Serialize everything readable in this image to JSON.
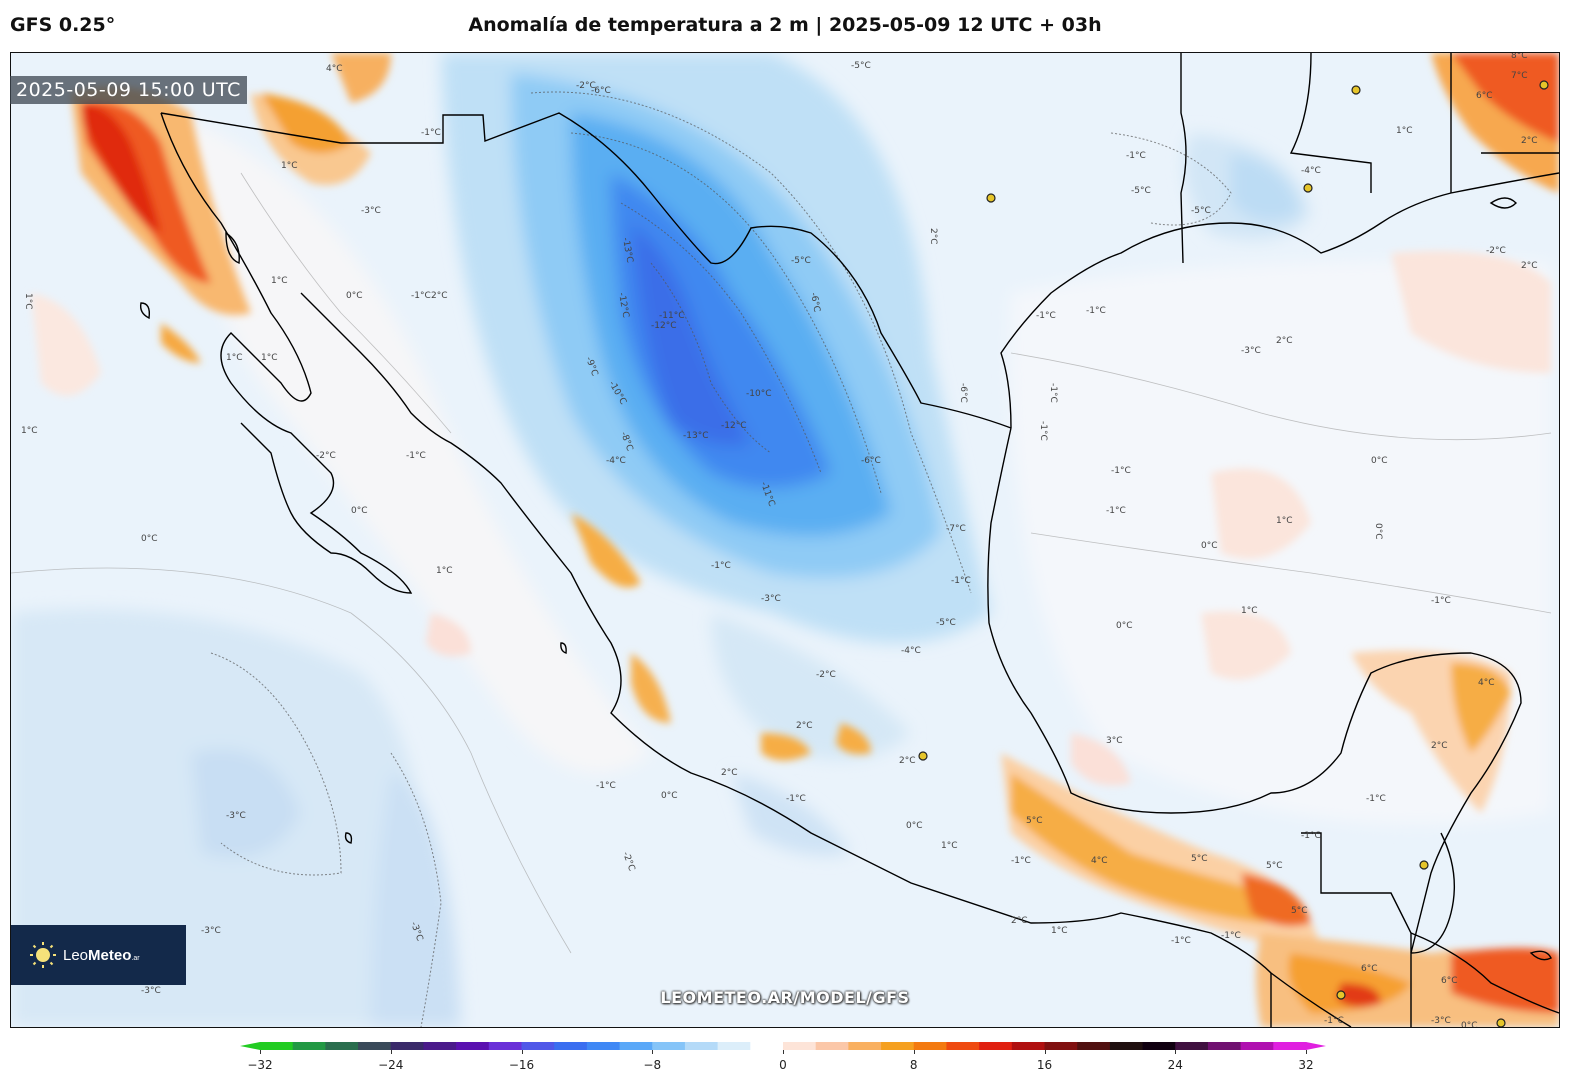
{
  "header": {
    "model": "GFS 0.25°",
    "title": "Anomalía de temperatura a 2 m | 2025-05-09 12 UTC + 03h"
  },
  "map": {
    "timestamp": "2025-05-09 15:00 UTC",
    "watermark": "LEOMETEO.AR/MODEL/GFS",
    "contour_labels": [
      "-13°C",
      "-12°C",
      "-11°C",
      "-10°C",
      "-9°C",
      "-8°C",
      "-7°C",
      "-6°C",
      "-5°C",
      "-4°C",
      "-3°C",
      "-2°C",
      "-1°C",
      "0°C",
      "1°C",
      "2°C",
      "3°C",
      "4°C",
      "5°C",
      "6°C",
      "7°C",
      "8°C"
    ]
  },
  "logo": {
    "prefix": "Leo",
    "bold": "Meteo",
    "suffix": ".ar"
  },
  "colorbar": {
    "min": -32,
    "max": 32,
    "ticks": [
      "−32",
      "−24",
      "−16",
      "−8",
      "0",
      "8",
      "16",
      "24",
      "32"
    ],
    "colors": [
      "#22cc22",
      "#229944",
      "#2a6e4e",
      "#3a4a5a",
      "#3a2a6a",
      "#4a1a8a",
      "#5a10b0",
      "#6a30d8",
      "#5058e8",
      "#3a6ef0",
      "#3f88f5",
      "#5aa8f8",
      "#85c4f8",
      "#b4daf8",
      "#dceefa",
      "#ffffff",
      "#fde4d8",
      "#fbc7a8",
      "#f9b060",
      "#f5a020",
      "#f37a10",
      "#ef4a10",
      "#e02010",
      "#b01010",
      "#801010",
      "#501010",
      "#201010",
      "#100010",
      "#401040",
      "#701070",
      "#b010b0",
      "#e020e0"
    ]
  }
}
